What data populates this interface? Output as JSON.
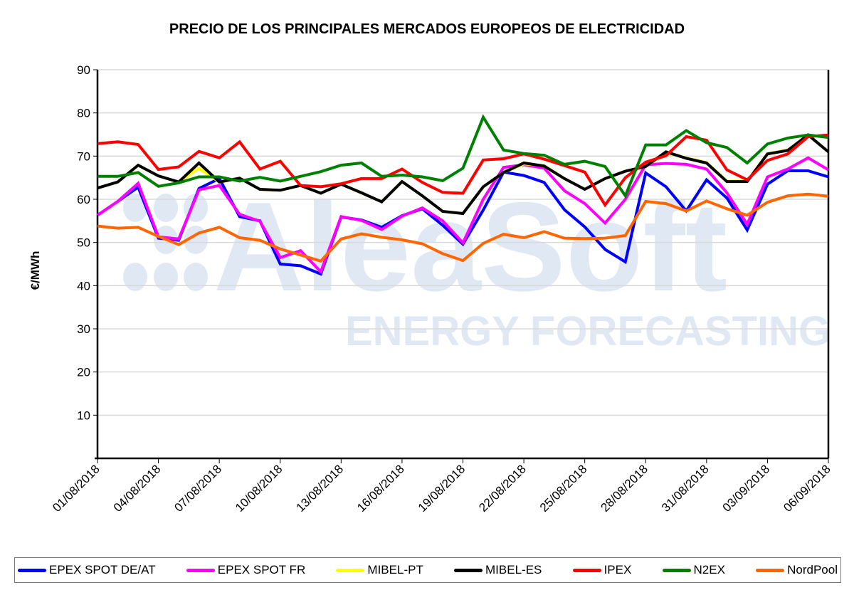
{
  "chart_data": {
    "type": "line",
    "title": "PRECIO DE LOS PRINCIPALES MERCADOS EUROPEOS DE ELECTRICIDAD",
    "xlabel": "",
    "ylabel": "€/MWh",
    "ylim": [
      0,
      90
    ],
    "yticks": [
      10,
      20,
      30,
      40,
      50,
      60,
      70,
      80,
      90
    ],
    "x_tick_labels": [
      "01/08/2018",
      "04/08/2018",
      "07/08/2018",
      "10/08/2018",
      "13/08/2018",
      "16/08/2018",
      "19/08/2018",
      "22/08/2018",
      "25/08/2018",
      "28/08/2018",
      "31/08/2018",
      "03/09/2018",
      "06/09/2018"
    ],
    "x_count": 37,
    "grid": true,
    "legend_position": "bottom",
    "watermark": "AleaSoft ENERGY FORECASTING",
    "series": [
      {
        "name": "EPEX SPOT DE/AT",
        "color": "#0000FF",
        "values": [
          56.3,
          59.5,
          62.8,
          51.0,
          50.5,
          62.5,
          64.8,
          56.0,
          55.0,
          45.0,
          44.6,
          42.7,
          55.9,
          55.2,
          53.5,
          56.2,
          57.8,
          54.0,
          49.6,
          57.5,
          66.3,
          65.5,
          63.9,
          57.6,
          53.6,
          48.4,
          45.5,
          66.1,
          62.9,
          57.3,
          64.5,
          60.3,
          52.9,
          63.5,
          66.6,
          66.6,
          65.2
        ]
      },
      {
        "name": "EPEX SPOT FR",
        "color": "#FF00FF",
        "values": [
          56.3,
          59.5,
          63.7,
          51.3,
          50.8,
          62.2,
          63.2,
          56.5,
          54.9,
          46.5,
          48.1,
          43.2,
          56.0,
          55.1,
          53.0,
          56.1,
          58.0,
          55.0,
          49.9,
          60.0,
          67.4,
          68.0,
          67.2,
          62.0,
          59.0,
          54.5,
          60.0,
          68.0,
          68.3,
          68.1,
          67.0,
          61.5,
          54.2,
          65.2,
          67.0,
          69.6,
          66.8
        ]
      },
      {
        "name": "MIBEL-PT",
        "color": "#FFFF00",
        "values": [
          62.6,
          64.0,
          67.9,
          65.4,
          64.0,
          67.2,
          64.0,
          64.9,
          62.3,
          62.1,
          63.2,
          61.4,
          63.5,
          61.5,
          59.4,
          64.1,
          60.8,
          57.2,
          56.7,
          62.9,
          66.2,
          68.2,
          67.8,
          64.8,
          62.3,
          64.8,
          66.5,
          67.6,
          70.8,
          69.6,
          68.5,
          64.2,
          64.2,
          70.6,
          71.4,
          74.9,
          71.0
        ]
      },
      {
        "name": "MIBEL-ES",
        "color": "#000000",
        "values": [
          62.6,
          64.0,
          67.9,
          65.4,
          64.0,
          68.4,
          64.0,
          64.9,
          62.3,
          62.1,
          63.2,
          61.4,
          63.5,
          61.5,
          59.4,
          64.1,
          60.8,
          57.2,
          56.7,
          62.9,
          66.2,
          68.4,
          67.7,
          64.8,
          62.3,
          64.8,
          66.5,
          67.6,
          71.0,
          69.5,
          68.4,
          64.1,
          64.1,
          70.5,
          71.3,
          74.9,
          71.0
        ]
      },
      {
        "name": "IPEX",
        "color": "#FF0000",
        "values": [
          72.9,
          73.3,
          72.7,
          66.9,
          67.5,
          71.1,
          69.6,
          73.3,
          67.0,
          68.8,
          63.2,
          62.9,
          63.6,
          64.8,
          64.8,
          67.0,
          63.9,
          61.6,
          61.4,
          69.1,
          69.4,
          70.5,
          69.3,
          67.8,
          66.3,
          58.7,
          65.0,
          68.6,
          70.1,
          74.5,
          73.7,
          66.8,
          64.5,
          69.0,
          70.5,
          74.5,
          74.9
        ]
      },
      {
        "name": "N2EX",
        "color": "#008000",
        "values": [
          65.3,
          65.3,
          66.2,
          63.0,
          63.8,
          65.2,
          65.2,
          64.2,
          65.1,
          64.2,
          65.3,
          66.4,
          67.9,
          68.4,
          65.3,
          65.6,
          65.2,
          64.3,
          67.2,
          79.0,
          71.4,
          70.6,
          70.2,
          68.1,
          68.8,
          67.6,
          60.8,
          72.6,
          72.6,
          75.9,
          73.1,
          72.0,
          68.4,
          72.8,
          74.2,
          74.9,
          74.3
        ]
      },
      {
        "name": "NordPool",
        "color": "#FF6600",
        "values": [
          53.8,
          53.3,
          53.5,
          51.4,
          49.5,
          52.2,
          53.5,
          51.1,
          50.5,
          48.5,
          47.1,
          45.7,
          50.8,
          52.0,
          51.2,
          50.6,
          49.7,
          47.4,
          45.8,
          49.8,
          51.9,
          51.1,
          52.5,
          51.0,
          50.9,
          51.0,
          51.6,
          59.5,
          59.0,
          57.3,
          59.6,
          57.8,
          56.3,
          59.3,
          60.8,
          61.2,
          60.7
        ]
      }
    ]
  }
}
